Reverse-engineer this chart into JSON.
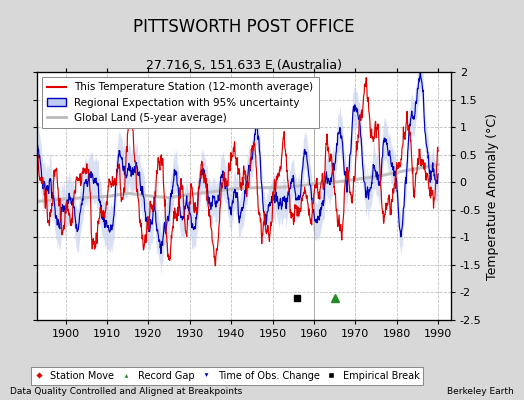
{
  "title": "PITTSWORTH POST OFFICE",
  "subtitle": "27.716 S, 151.633 E (Australia)",
  "ylabel": "Temperature Anomaly (°C)",
  "xlabel_bottom": "Data Quality Controlled and Aligned at Breakpoints",
  "xlabel_right": "Berkeley Earth",
  "xlim": [
    1893,
    1993
  ],
  "ylim": [
    -2.5,
    2.0
  ],
  "yticks": [
    -2.5,
    -2.0,
    -1.5,
    -1.0,
    -0.5,
    0.0,
    0.5,
    1.0,
    1.5,
    2.0
  ],
  "xticks": [
    1900,
    1910,
    1920,
    1930,
    1940,
    1950,
    1960,
    1970,
    1980,
    1990
  ],
  "bg_color": "#d8d8d8",
  "plot_bg_color": "#ffffff",
  "grid_color": "#c0c0c0",
  "title_fontsize": 12,
  "subtitle_fontsize": 9,
  "tick_fontsize": 8,
  "label_fontsize": 9,
  "empirical_break_x": 1956,
  "empirical_break_y": -2.1,
  "record_gap_x": 1965,
  "record_gap_y": -2.1,
  "red_color": "#dd0000",
  "blue_color": "#0000bb",
  "blue_fill_color": "#c0ccee",
  "gray_color": "#bbbbbb",
  "legend_fontsize": 7.5
}
